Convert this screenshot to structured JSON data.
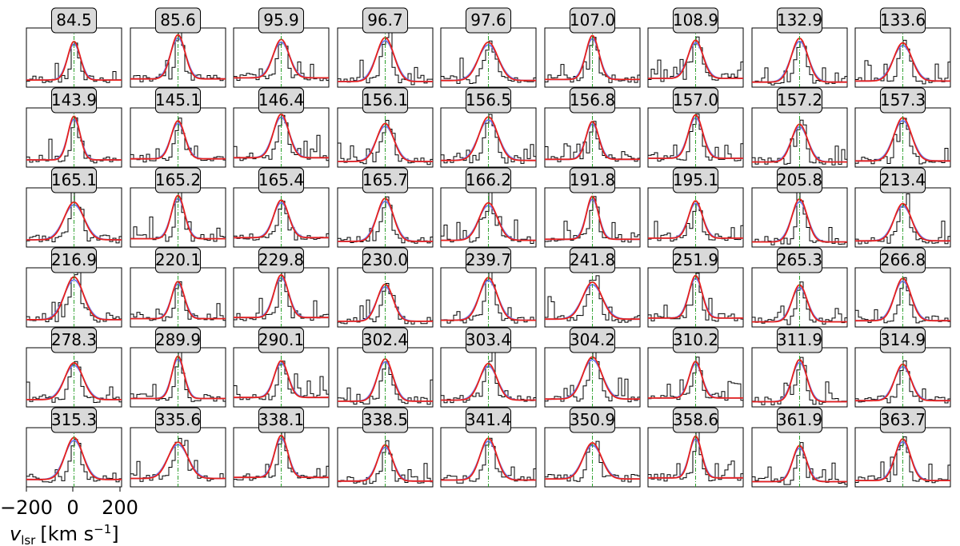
{
  "chart_data": {
    "type": "line",
    "layout": "small-multiples 6 rows x 9 columns",
    "xlabel": "v_lsr [km s^-1]",
    "xlabel_parts": {
      "v": "v",
      "sub": "lsr",
      "unit_pre": "[km s",
      "unit_exp": "−1",
      "unit_post": "]"
    },
    "xlim": [
      -200,
      200
    ],
    "xticks": [
      -200,
      0,
      200
    ],
    "xtick_labels": [
      "−200",
      "0",
      "200"
    ],
    "reference_line_x": 0,
    "colors": {
      "spectrum": "#000000",
      "fit_red": "#e8211c",
      "fit_blue": "#6a7bf0",
      "fit_purple": "#8a2ec8",
      "reference": "#2ca02c",
      "label_box": "#d9d9d9"
    },
    "series": [
      {
        "name": "",
        "description": "observed spectrum (black steps)"
      },
      {
        "name": "",
        "description": "model fit (red)"
      },
      {
        "name": "",
        "description": "model fit (blue)"
      }
    ],
    "panels": [
      "84.5",
      "85.6",
      "95.9",
      "96.7",
      "97.6",
      "107.0",
      "108.9",
      "132.9",
      "133.6",
      "143.9",
      "145.1",
      "146.4",
      "156.1",
      "156.5",
      "156.8",
      "157.0",
      "157.2",
      "157.3",
      "165.1",
      "165.2",
      "165.4",
      "165.7",
      "166.2",
      "191.8",
      "195.1",
      "205.8",
      "213.4",
      "216.9",
      "220.1",
      "229.8",
      "230.0",
      "239.7",
      "241.8",
      "251.9",
      "265.3",
      "266.8",
      "278.3",
      "289.9",
      "290.1",
      "302.4",
      "303.4",
      "304.2",
      "310.2",
      "311.9",
      "314.9",
      "315.3",
      "335.6",
      "338.1",
      "338.5",
      "341.4",
      "350.9",
      "358.6",
      "361.9",
      "363.7"
    ]
  }
}
